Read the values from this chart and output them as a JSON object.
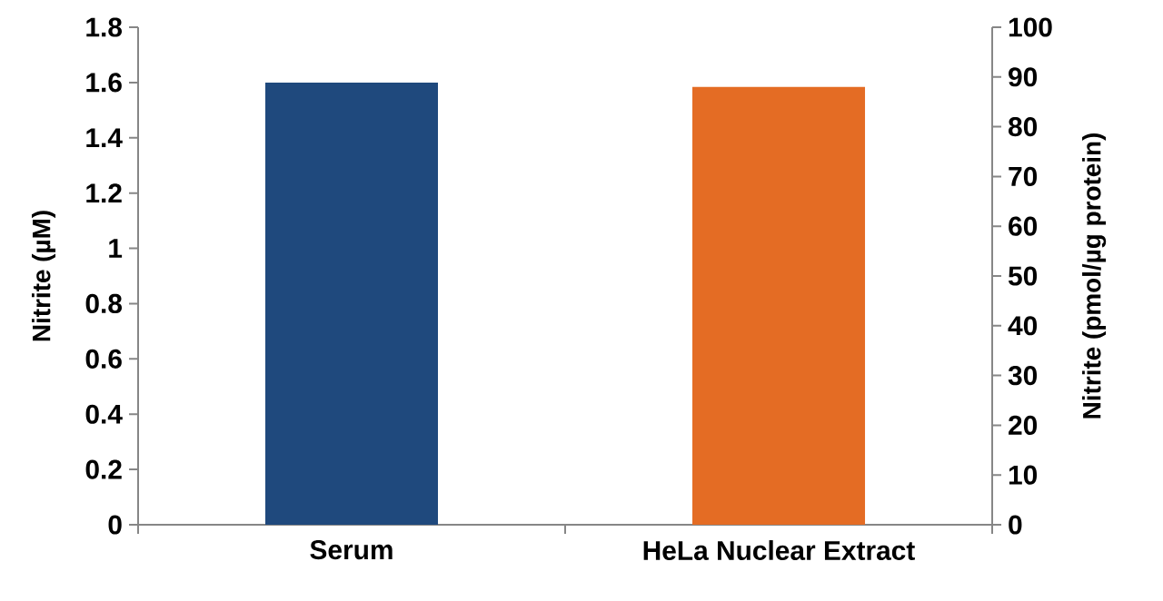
{
  "chart_data": {
    "type": "bar",
    "ylabel": "Nitrite (µM)",
    "y2label": "Nitrite (pmol/µg protein)",
    "categories": [
      "Serum",
      "HeLa Nuclear Extract"
    ],
    "series": [
      {
        "color": "#1f497d",
        "values": [
          1.6,
          null
        ]
      },
      {
        "color": "#e46c24",
        "values": [
          null,
          88
        ],
        "axis": "y2"
      }
    ],
    "ylim": [
      0,
      1.8
    ],
    "yticks": [
      0,
      0.2,
      0.4,
      0.6,
      0.8,
      1,
      1.2,
      1.4,
      1.6,
      1.8
    ],
    "y2lim": [
      0,
      100
    ],
    "y2ticks": [
      0,
      10,
      20,
      30,
      40,
      50,
      60,
      70,
      80,
      90,
      100
    ]
  }
}
